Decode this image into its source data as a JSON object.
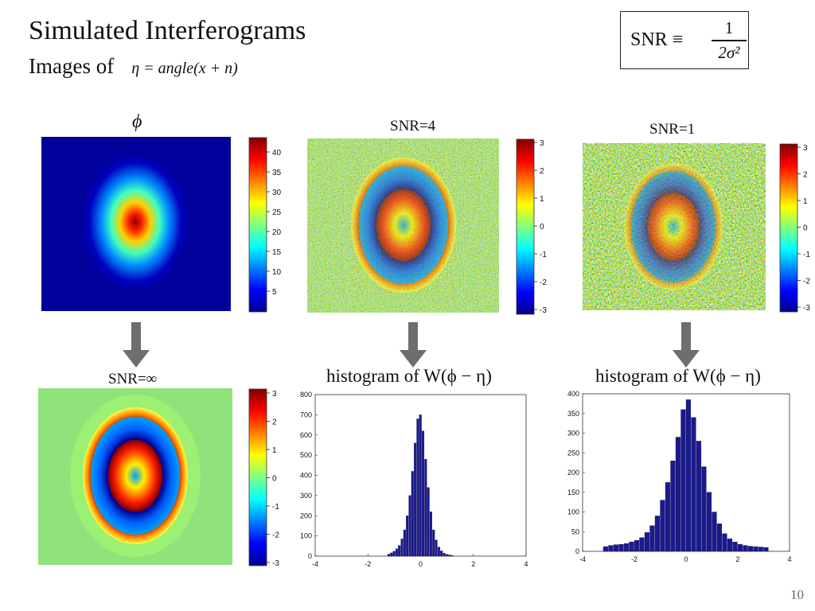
{
  "slide": {
    "title": "Simulated Interferograms",
    "subtitle_prefix": "Images of",
    "subtitle_eq": "η = angle(x + n)",
    "snr_box": {
      "lhs": "SNR ≡",
      "numerator": "1",
      "denominator": "2σ²"
    },
    "page_number": "10"
  },
  "panels": {
    "phi_label": "ϕ",
    "snr4_label": "SNR=4",
    "snr1_label": "SNR=1",
    "snrinf_label": "SNR=∞",
    "hist_label_left": "histogram of W(ϕ − η)",
    "hist_label_right": "histogram of W(ϕ − η)"
  },
  "colorbars": {
    "phi": [
      "40",
      "35",
      "30",
      "25",
      "20",
      "15",
      "10",
      "5"
    ],
    "phase": [
      "3",
      "2",
      "1",
      "0",
      "-1",
      "-2",
      "-3"
    ]
  },
  "chart_data": [
    {
      "type": "bar",
      "name_in_slide": "histogram of W(ϕ − η), SNR=4",
      "xlim": [
        -4,
        4
      ],
      "ylim": [
        0,
        800
      ],
      "xticks": [
        "-4",
        "-2",
        "0",
        "2",
        "4"
      ],
      "yticks": [
        "0",
        "100",
        "200",
        "300",
        "400",
        "500",
        "600",
        "700",
        "800"
      ],
      "x": [
        -1.2,
        -1.1,
        -1.0,
        -0.9,
        -0.8,
        -0.7,
        -0.6,
        -0.5,
        -0.4,
        -0.3,
        -0.2,
        -0.1,
        0.0,
        0.1,
        0.2,
        0.3,
        0.4,
        0.5,
        0.6,
        0.7,
        0.8,
        0.9,
        1.0,
        1.1,
        1.2
      ],
      "values": [
        10,
        16,
        24,
        36,
        52,
        85,
        130,
        200,
        300,
        420,
        560,
        680,
        700,
        620,
        480,
        340,
        220,
        130,
        80,
        45,
        26,
        15,
        9,
        6,
        4
      ]
    },
    {
      "type": "bar",
      "name_in_slide": "histogram of W(ϕ − η), SNR=1",
      "xlim": [
        -4,
        4
      ],
      "ylim": [
        0,
        400
      ],
      "xticks": [
        "-4",
        "-2",
        "0",
        "2",
        "4"
      ],
      "yticks": [
        "0",
        "50",
        "100",
        "150",
        "200",
        "250",
        "300",
        "350",
        "400"
      ],
      "x": [
        -3.1,
        -2.9,
        -2.7,
        -2.5,
        -2.3,
        -2.1,
        -1.9,
        -1.7,
        -1.5,
        -1.3,
        -1.1,
        -0.9,
        -0.7,
        -0.5,
        -0.3,
        -0.1,
        0.1,
        0.3,
        0.5,
        0.7,
        0.9,
        1.1,
        1.3,
        1.5,
        1.7,
        1.9,
        2.1,
        2.3,
        2.5,
        2.7,
        2.9,
        3.1
      ],
      "values": [
        12,
        15,
        17,
        18,
        20,
        24,
        28,
        35,
        48,
        65,
        90,
        130,
        175,
        230,
        290,
        360,
        385,
        340,
        280,
        215,
        150,
        100,
        70,
        45,
        32,
        24,
        18,
        15,
        13,
        12,
        11,
        10
      ]
    }
  ]
}
